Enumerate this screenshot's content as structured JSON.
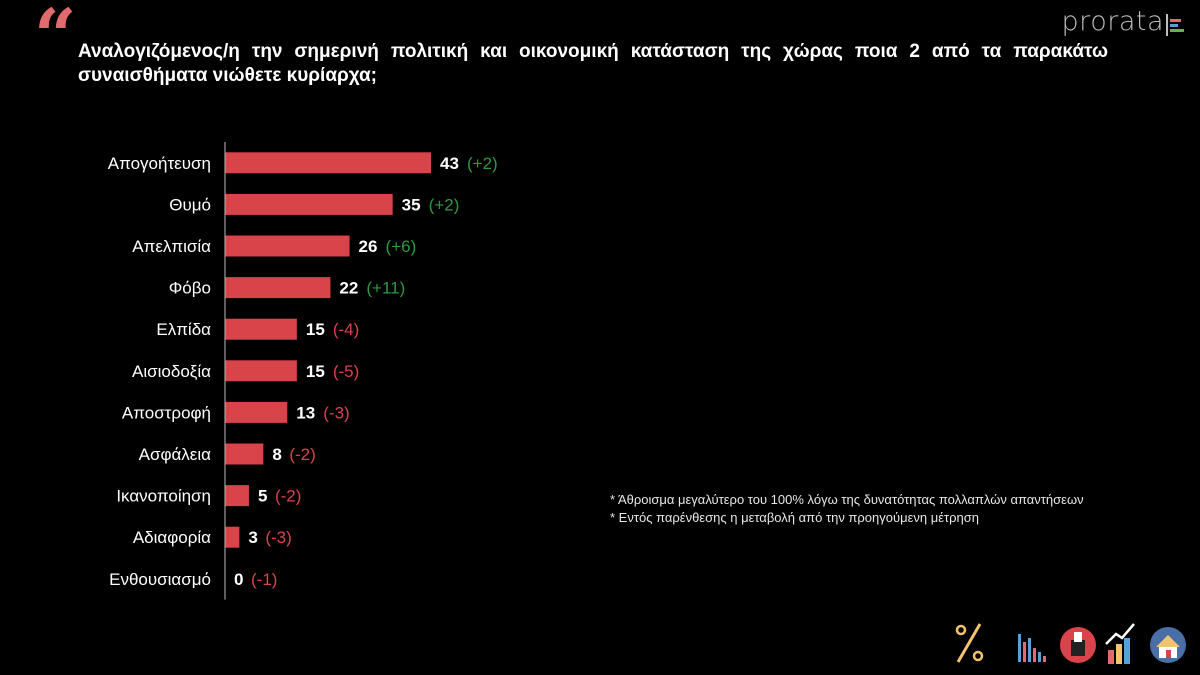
{
  "header": {
    "quote_mark": "“",
    "title": "Αναλογιζόμενος/η την σημερινή πολιτική και οικονομική κατάσταση της χώρας ποια 2 από τα παρακάτω συναισθήματα νιώθετε κυρίαρχα;",
    "brand": "prorata"
  },
  "chart_data": {
    "type": "bar",
    "orientation": "horizontal",
    "categories": [
      "Απογοήτευση",
      "Θυμό",
      "Απελπισία",
      "Φόβο",
      "Ελπίδα",
      "Αισιοδοξία",
      "Αποστροφή",
      "Ασφάλεια",
      "Ικανοποίηση",
      "Αδιαφορία",
      "Ενθουσιασμό"
    ],
    "values": [
      43,
      35,
      26,
      22,
      15,
      15,
      13,
      8,
      5,
      3,
      0
    ],
    "changes": [
      "(+2)",
      "(+2)",
      "(+6)",
      "(+11)",
      "(-4)",
      "(-5)",
      "(-3)",
      "(-2)",
      "(-2)",
      "(-3)",
      "(-1)"
    ],
    "bar_color": "#d9434a",
    "positive_change_color": "#2e9a3e",
    "negative_change_color": "#d9434a"
  },
  "notes": [
    "* Άθροισμα μεγαλύτερο του 100% λόγω της δυνατότητας πολλαπλών απαντήσεων",
    "* Εντός παρένθεσης η μεταβολή από την προηγούμενη μέτρηση"
  ],
  "footer_icons": [
    "percent-icon",
    "bar-chart-icon",
    "ballot-box-icon",
    "growth-chart-icon",
    "house-icon"
  ]
}
